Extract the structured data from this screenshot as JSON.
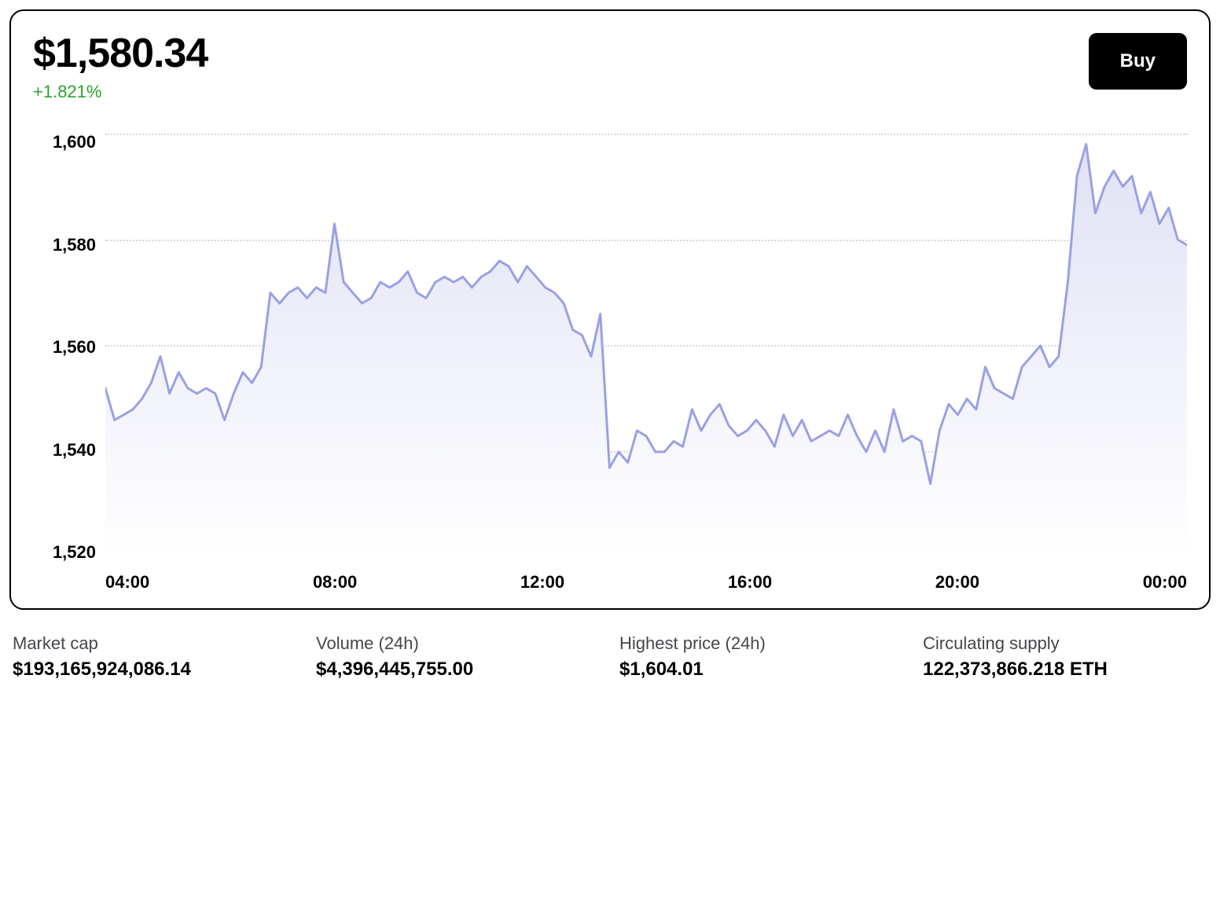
{
  "header": {
    "price": "$1,580.34",
    "change_pct": "+1.821%",
    "change_color": "#27a52a",
    "buy_label": "Buy"
  },
  "chart": {
    "type": "area",
    "line_color": "#9aa0e3",
    "fill_top_color": "#e0e2f5",
    "fill_bottom_color": "#ffffff",
    "line_width": 3,
    "grid_color": "#d8d8d8",
    "background_color": "#ffffff",
    "ylim": [
      1520,
      1600
    ],
    "y_ticks": [
      1600,
      1580,
      1560,
      1540,
      1520
    ],
    "y_tick_labels": [
      "1,600",
      "1,580",
      "1,560",
      "1,540",
      "1,520"
    ],
    "x_tick_labels": [
      "04:00",
      "08:00",
      "12:00",
      "16:00",
      "20:00",
      "00:00"
    ],
    "x_tick_positions": [
      0.04,
      0.22,
      0.4,
      0.58,
      0.76,
      0.94
    ],
    "series": [
      1552,
      1546,
      1547,
      1548,
      1550,
      1553,
      1558,
      1551,
      1555,
      1552,
      1551,
      1552,
      1551,
      1546,
      1551,
      1555,
      1553,
      1556,
      1570,
      1568,
      1570,
      1571,
      1569,
      1571,
      1570,
      1583,
      1572,
      1570,
      1568,
      1569,
      1572,
      1571,
      1572,
      1574,
      1570,
      1569,
      1572,
      1573,
      1572,
      1573,
      1571,
      1573,
      1574,
      1576,
      1575,
      1572,
      1575,
      1573,
      1571,
      1570,
      1568,
      1563,
      1562,
      1558,
      1566,
      1537,
      1540,
      1538,
      1544,
      1543,
      1540,
      1540,
      1542,
      1541,
      1548,
      1544,
      1547,
      1549,
      1545,
      1543,
      1544,
      1546,
      1544,
      1541,
      1547,
      1543,
      1546,
      1542,
      1543,
      1544,
      1543,
      1547,
      1543,
      1540,
      1544,
      1540,
      1548,
      1542,
      1543,
      1542,
      1534,
      1544,
      1549,
      1547,
      1550,
      1548,
      1556,
      1552,
      1551,
      1550,
      1556,
      1558,
      1560,
      1556,
      1558,
      1572,
      1592,
      1598,
      1585,
      1590,
      1593,
      1590,
      1592,
      1585,
      1589,
      1583,
      1586,
      1580,
      1579
    ]
  },
  "stats": [
    {
      "label": "Market cap",
      "value": "$193,165,924,086.14"
    },
    {
      "label": "Volume (24h)",
      "value": "$4,396,445,755.00"
    },
    {
      "label": "Highest price (24h)",
      "value": "$1,604.01"
    },
    {
      "label": "Circulating supply",
      "value": "122,373,866.218 ETH"
    }
  ],
  "typography": {
    "price_fontsize": 52,
    "axis_fontsize": 22,
    "stat_label_fontsize": 22,
    "stat_value_fontsize": 24
  }
}
